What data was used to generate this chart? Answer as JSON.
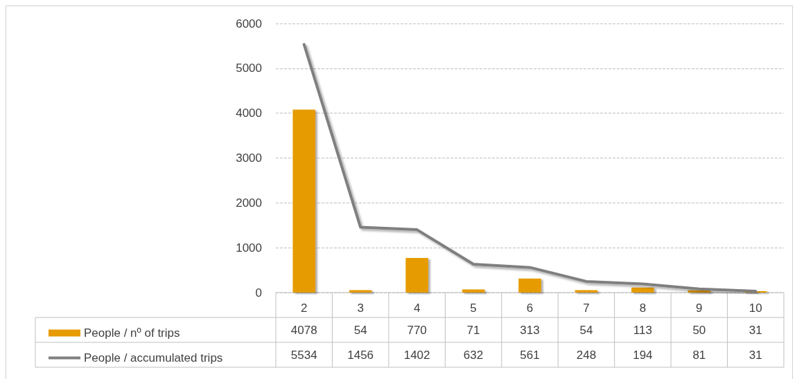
{
  "chart_data": {
    "type": "bar",
    "categories": [
      "2",
      "3",
      "4",
      "5",
      "6",
      "7",
      "8",
      "9",
      "10"
    ],
    "series": [
      {
        "name": "People / nº of trips",
        "color": "#e69b00",
        "values": [
          4078,
          54,
          770,
          71,
          313,
          54,
          113,
          50,
          31
        ]
      },
      {
        "name": "People / accumulated trips",
        "type": "line",
        "color": "#7f7f7f",
        "values": [
          5534,
          1456,
          1402,
          632,
          561,
          248,
          194,
          81,
          31
        ]
      }
    ],
    "ylim": [
      0,
      6000
    ],
    "yticks": [
      0,
      1000,
      2000,
      3000,
      4000,
      5000,
      6000
    ],
    "grid": "y",
    "legend": "bottom left",
    "data_labels": true,
    "marker": "none",
    "line_style": "solid"
  }
}
